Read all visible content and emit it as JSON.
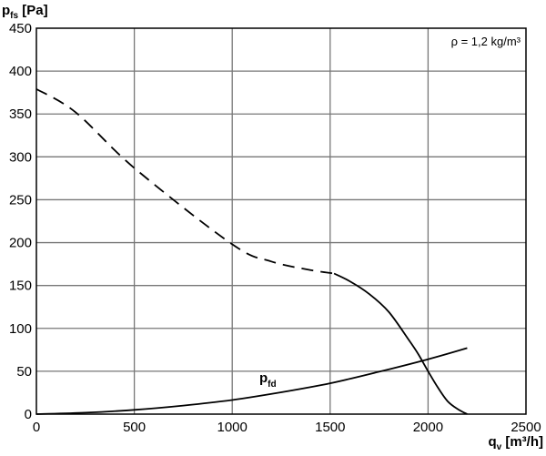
{
  "chart_data": {
    "type": "line",
    "y_title": {
      "main": "p",
      "sub": "fs",
      "unit": "[Pa]"
    },
    "x_title": {
      "main": "q",
      "sub": "v",
      "unit": "[m³/h]"
    },
    "annotation": "ρ = 1,2 kg/m³",
    "xlim": [
      0,
      2500
    ],
    "ylim": [
      0,
      450
    ],
    "x_ticks": [
      "0",
      "500",
      "1000",
      "1500",
      "2000",
      "2500"
    ],
    "y_ticks": [
      "0",
      "50",
      "100",
      "150",
      "200",
      "250",
      "300",
      "350",
      "400",
      "450"
    ],
    "grid": true,
    "series": [
      {
        "label": {
          "main": "p",
          "sub": "fd"
        },
        "style": "solid",
        "x": [
          0,
          250,
          500,
          750,
          1000,
          1250,
          1500,
          1750,
          2000,
          2200
        ],
        "y": [
          0,
          1.7,
          5,
          10,
          16.5,
          25.5,
          36,
          49.5,
          64,
          77
        ]
      },
      {
        "style": "dashed",
        "x": [
          0,
          200,
          500,
          1000,
          1200,
          1400,
          1520
        ],
        "y": [
          379,
          352,
          287,
          198,
          178,
          168,
          164
        ]
      },
      {
        "style": "solid",
        "x": [
          1520,
          1600,
          1700,
          1800,
          1900,
          1950,
          2000,
          2050,
          2100,
          2150,
          2200
        ],
        "y": [
          164,
          155,
          140,
          119,
          87,
          70,
          50,
          31,
          15,
          6,
          0
        ]
      }
    ]
  }
}
